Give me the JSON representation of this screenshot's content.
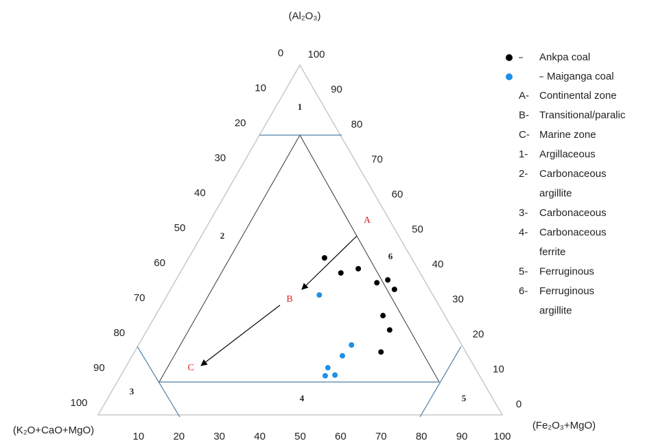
{
  "chart_data": {
    "type": "ternary",
    "top_label": "(Al₂O₃)",
    "left_label": "(K₂O+CaO+MgO)",
    "right_label": "(Fe₂O₃+MgO)",
    "al_ticks": [
      0,
      10,
      20,
      30,
      40,
      50,
      60,
      70,
      80,
      90,
      100
    ],
    "k_ticks": [
      0,
      10,
      20,
      30,
      40,
      50,
      60,
      70,
      80,
      90,
      100
    ],
    "fe_ticks": [
      10,
      20,
      30,
      40,
      50,
      60,
      70,
      80,
      90,
      100
    ],
    "series": [
      {
        "name": "Ankpa coal",
        "color": "#000000",
        "values": [
          44.9,
          40.6,
          41.8,
          37.8,
          38.6,
          35.9,
          28.4,
          24.3,
          18.0
        ],
        "x": [
          33.6,
          39.8,
          43.5,
          50.1,
          52.4,
          55.4,
          56.3,
          60.0,
          61.0
        ]
      },
      {
        "name": "Maiganga coal",
        "color": "#1e90e8",
        "values": [
          34.3,
          20.0,
          16.9,
          13.5,
          11.2,
          11.4
        ],
        "x": [
          37.6,
          52.7,
          52.0,
          50.1,
          50.6,
          52.9
        ]
      }
    ],
    "zones": [
      "1",
      "2",
      "3",
      "4",
      "5",
      "6"
    ],
    "regions": [
      "A",
      "B",
      "C"
    ],
    "notes": [
      {
        "key": "A-",
        "lines": [
          "Continental zone"
        ]
      },
      {
        "key": "B-",
        "lines": [
          "Transitional/paralic"
        ]
      },
      {
        "key": "C-",
        "lines": [
          "Marine zone"
        ]
      },
      {
        "key": "1-",
        "lines": [
          "Argillaceous"
        ]
      },
      {
        "key": "2-",
        "lines": [
          "Carbonaceous",
          "argillite"
        ]
      },
      {
        "key": "3-",
        "lines": [
          "Carbonaceous"
        ]
      },
      {
        "key": "4-",
        "lines": [
          "Carbonaceous",
          "ferrite"
        ]
      },
      {
        "key": "5-",
        "lines": [
          "Ferruginous"
        ]
      },
      {
        "key": "6-",
        "lines": [
          "Ferruginous",
          "argillite"
        ]
      }
    ]
  }
}
